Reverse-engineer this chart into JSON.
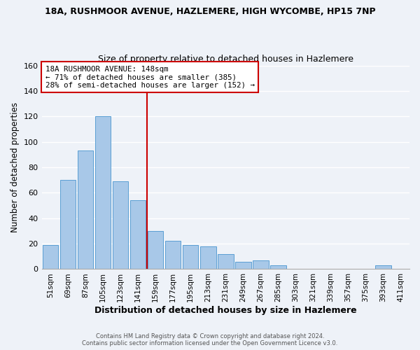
{
  "title_line1": "18A, RUSHMOOR AVENUE, HAZLEMERE, HIGH WYCOMBE, HP15 7NP",
  "title_line2": "Size of property relative to detached houses in Hazlemere",
  "xlabel": "Distribution of detached houses by size in Hazlemere",
  "ylabel": "Number of detached properties",
  "bar_labels": [
    "51sqm",
    "69sqm",
    "87sqm",
    "105sqm",
    "123sqm",
    "141sqm",
    "159sqm",
    "177sqm",
    "195sqm",
    "213sqm",
    "231sqm",
    "249sqm",
    "267sqm",
    "285sqm",
    "303sqm",
    "321sqm",
    "339sqm",
    "357sqm",
    "375sqm",
    "393sqm",
    "411sqm"
  ],
  "bar_values": [
    19,
    70,
    93,
    120,
    69,
    54,
    30,
    22,
    19,
    18,
    12,
    6,
    7,
    3,
    0,
    0,
    0,
    0,
    0,
    3,
    0
  ],
  "bar_color": "#a8c8e8",
  "bar_edge_color": "#5a9fd4",
  "vline_color": "#cc0000",
  "annotation_title": "18A RUSHMOOR AVENUE: 148sqm",
  "annotation_line2": "← 71% of detached houses are smaller (385)",
  "annotation_line3": "28% of semi-detached houses are larger (152) →",
  "annotation_box_color": "#ffffff",
  "annotation_box_edge": "#cc0000",
  "ylim": [
    0,
    160
  ],
  "yticks": [
    0,
    20,
    40,
    60,
    80,
    100,
    120,
    140,
    160
  ],
  "footer_line1": "Contains HM Land Registry data © Crown copyright and database right 2024.",
  "footer_line2": "Contains public sector information licensed under the Open Government Licence v3.0.",
  "background_color": "#eef2f8",
  "grid_color": "#ffffff"
}
